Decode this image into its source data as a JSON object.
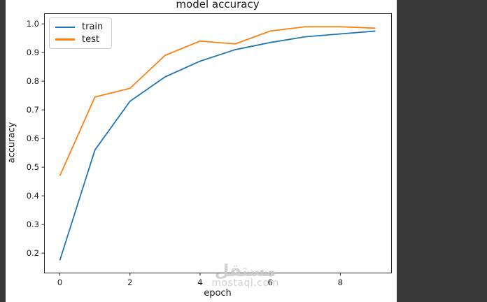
{
  "window": {
    "background_color": "#383838",
    "figure_background_color": "#ffffff",
    "axis_color": "#262626",
    "text_color": "#1a1a1a"
  },
  "chart_data": {
    "type": "line",
    "title": "model accuracy",
    "xlabel": "epoch",
    "ylabel": "accuracy",
    "x": [
      0,
      1,
      2,
      3,
      4,
      5,
      6,
      7,
      8,
      9
    ],
    "series": [
      {
        "name": "train",
        "color": "#1f77b4",
        "values": [
          0.175,
          0.56,
          0.73,
          0.815,
          0.87,
          0.91,
          0.935,
          0.955,
          0.965,
          0.975
        ]
      },
      {
        "name": "test",
        "color": "#ff7f0e",
        "values": [
          0.47,
          0.745,
          0.775,
          0.89,
          0.94,
          0.93,
          0.975,
          0.99,
          0.99,
          0.985
        ]
      }
    ],
    "xlim": [
      -0.45,
      9.45
    ],
    "ylim": [
      0.132,
      1.037
    ],
    "xticks": [
      0,
      2,
      4,
      6,
      8
    ],
    "yticks": [
      0.2,
      0.3,
      0.4,
      0.5,
      0.6,
      0.7,
      0.8,
      0.9,
      1.0
    ],
    "grid": false,
    "legend_position": "upper left"
  },
  "watermark": {
    "logo_text": "مستقل",
    "domain_text": "mostaql.com"
  }
}
